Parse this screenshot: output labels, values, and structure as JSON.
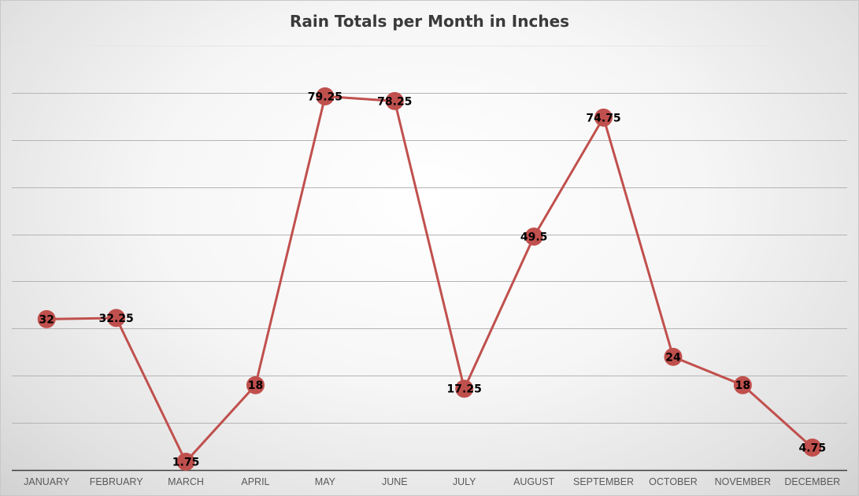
{
  "chart_data": {
    "type": "line",
    "title": "Rain Totals per Month in Inches",
    "xlabel": "",
    "ylabel": "",
    "categories": [
      "JANUARY",
      "FEBRUARY",
      "MARCH",
      "APRIL",
      "MAY",
      "JUNE",
      "JULY",
      "AUGUST",
      "SEPTEMBER",
      "OCTOBER",
      "NOVEMBER",
      "DECEMBER"
    ],
    "series": [
      {
        "values": [
          32,
          32.25,
          1.75,
          18,
          79.25,
          78.25,
          17.25,
          49.5,
          74.75,
          24,
          18,
          4.75
        ],
        "value_labels": [
          "32",
          "32.25",
          "1.75",
          "18",
          "79.25",
          "78.25",
          "17.25",
          "49.5",
          "74.75",
          "24",
          "18",
          "4.75"
        ],
        "color": "#c0504d"
      }
    ],
    "ylim": [
      0,
      90
    ],
    "y_gridline_step": 10,
    "y_tick_labels_shown": false,
    "grid": true,
    "legend": "none",
    "data_labels": "center"
  }
}
